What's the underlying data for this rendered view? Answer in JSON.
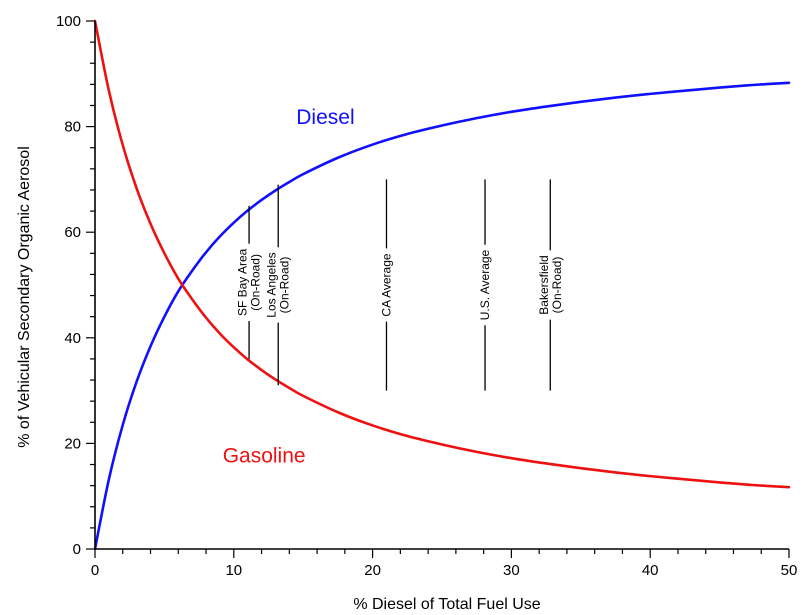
{
  "chart_data": {
    "type": "line",
    "xlabel": "% Diesel of Total Fuel Use",
    "ylabel": "% of Vehicular Secondary Organic Aerosol",
    "xlim": [
      0,
      50
    ],
    "ylim": [
      0,
      100
    ],
    "x_ticks": [
      "0",
      "10",
      "20",
      "30",
      "40",
      "50"
    ],
    "y_ticks": [
      "0",
      "20",
      "40",
      "60",
      "80",
      "100"
    ],
    "grid": false,
    "series": [
      {
        "name": "Diesel",
        "color": "#1010ff",
        "x": [
          0,
          1,
          2,
          3,
          4,
          5,
          6,
          7,
          8,
          9,
          10,
          11,
          12,
          13,
          14,
          15,
          17.5,
          20,
          22.5,
          25,
          27.5,
          30,
          32.5,
          35,
          37.5,
          40,
          42.5,
          45,
          47.5,
          50
        ],
        "y": [
          0,
          13.2,
          23.5,
          31.7,
          38.4,
          44.0,
          48.8,
          52.7,
          56.2,
          59.2,
          61.8,
          64.1,
          66.1,
          67.9,
          69.5,
          71.0,
          74.1,
          76.6,
          78.6,
          80.2,
          81.6,
          82.8,
          83.8,
          84.7,
          85.5,
          86.2,
          86.8,
          87.4,
          87.9,
          88.3
        ]
      },
      {
        "name": "Gasoline",
        "color": "#ee1111",
        "x": [
          0,
          1,
          2,
          3,
          4,
          5,
          6,
          7,
          8,
          9,
          10,
          11,
          12,
          13,
          14,
          15,
          17.5,
          20,
          22.5,
          25,
          27.5,
          30,
          32.5,
          35,
          37.5,
          40,
          42.5,
          45,
          47.5,
          50
        ],
        "y": [
          100,
          86.8,
          76.5,
          68.3,
          61.6,
          56.0,
          51.2,
          47.3,
          43.8,
          40.8,
          38.2,
          35.9,
          33.9,
          32.1,
          30.5,
          29.0,
          25.9,
          23.4,
          21.4,
          19.8,
          18.4,
          17.2,
          16.2,
          15.3,
          14.5,
          13.8,
          13.2,
          12.6,
          12.1,
          11.7
        ]
      }
    ],
    "annotations": [
      {
        "x": 11.1,
        "y_from": 36,
        "y_to": 65,
        "label_lines": [
          "SF Bay Area",
          "(On-Road)"
        ]
      },
      {
        "x": 13.2,
        "y_from": 31,
        "y_to": 69,
        "label_lines": [
          "Los Angeles",
          "(On-Road)"
        ]
      },
      {
        "x": 21.0,
        "y_from": 30,
        "y_to": 70,
        "label_lines": [
          "CA Average"
        ]
      },
      {
        "x": 28.1,
        "y_from": 30,
        "y_to": 70,
        "label_lines": [
          "U.S. Average"
        ]
      },
      {
        "x": 32.8,
        "y_from": 30,
        "y_to": 70,
        "label_lines": [
          "Bakersfield",
          "(On-Road)"
        ]
      }
    ]
  }
}
